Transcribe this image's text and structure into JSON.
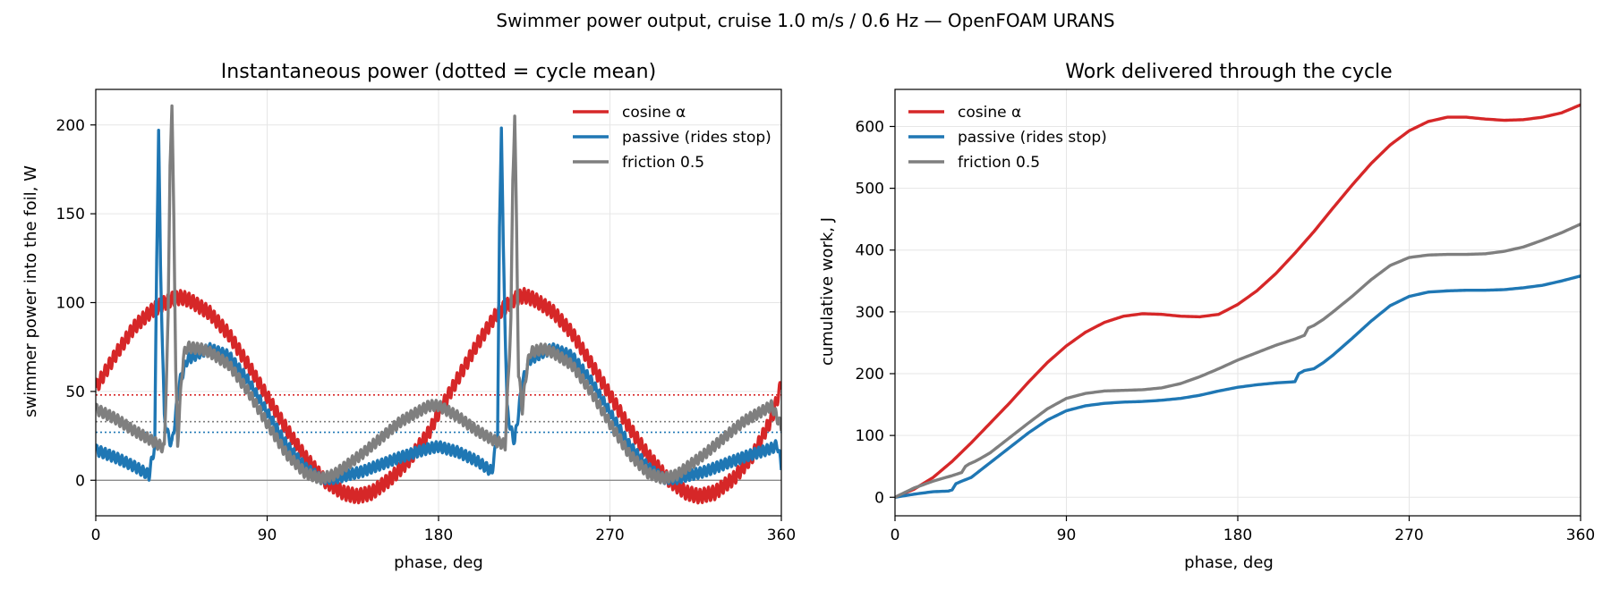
{
  "figure_title": "Swimmer power output, cruise 1.0 m/s / 0.6 Hz — OpenFOAM URANS",
  "colors": {
    "cosine": "#d62728",
    "passive": "#1f77b4",
    "friction": "#7f7f7f",
    "zero_line": "#808080",
    "grid": "#e6e6e6"
  },
  "chart_data": [
    {
      "type": "line",
      "title": "Instantaneous power (dotted = cycle mean)",
      "xlabel": "phase, deg",
      "ylabel": "swimmer power into the foil, W",
      "xlim": [
        0,
        360
      ],
      "ylim": [
        -20,
        220
      ],
      "xticks": [
        0,
        90,
        180,
        270,
        360
      ],
      "yticks": [
        0,
        50,
        100,
        150,
        200
      ],
      "grid": true,
      "legend": "top-right",
      "series": [
        {
          "name": "cosine α",
          "color": "#d62728",
          "mean": 48,
          "x": [
            0,
            10,
            20,
            30,
            40,
            45,
            50,
            60,
            70,
            80,
            90,
            100,
            110,
            120,
            130,
            137,
            145,
            155,
            165,
            175,
            180,
            190,
            200,
            210,
            220,
            225,
            230,
            240,
            250,
            260,
            270,
            280,
            290,
            300,
            310,
            317,
            325,
            335,
            345,
            355,
            360
          ],
          "y": [
            52,
            70,
            86,
            96,
            102,
            103,
            101,
            94,
            82,
            65,
            47,
            29,
            13,
            0,
            -7,
            -9,
            -7,
            1,
            12,
            27,
            38,
            57,
            76,
            93,
            102,
            104,
            102,
            95,
            83,
            66,
            48,
            30,
            14,
            1,
            -7,
            -9,
            -7,
            1,
            14,
            35,
            54
          ],
          "ripple": {
            "amplitude": 4,
            "period_deg": 2.2
          }
        },
        {
          "name": "passive (rides stop)",
          "color": "#1f77b4",
          "mean": 27,
          "x": [
            0,
            10,
            20,
            28,
            31,
            32,
            33,
            34,
            36,
            38,
            40,
            44,
            48,
            55,
            60,
            70,
            80,
            90,
            100,
            110,
            118,
            125,
            140,
            160,
            175,
            180,
            190,
            200,
            208,
            211,
            212,
            213,
            214,
            216,
            218,
            220,
            224,
            228,
            235,
            240,
            250,
            260,
            270,
            280,
            290,
            298,
            305,
            320,
            340,
            355,
            358,
            360
          ],
          "y": [
            17,
            13,
            8,
            3,
            20,
            125,
            197,
            120,
            35,
            25,
            20,
            55,
            68,
            72,
            74,
            70,
            56,
            38,
            20,
            7,
            1,
            1,
            5,
            13,
            18,
            19,
            16,
            11,
            5,
            25,
            140,
            201,
            130,
            40,
            28,
            22,
            55,
            68,
            72,
            74,
            70,
            56,
            38,
            20,
            7,
            1,
            1,
            5,
            13,
            18,
            20,
            8
          ],
          "ripple": {
            "amplitude": 3,
            "period_deg": 2.2
          }
        },
        {
          "name": "friction 0.5",
          "color": "#7f7f7f",
          "mean": 33,
          "x": [
            0,
            10,
            20,
            30,
            36,
            38,
            39,
            40,
            41,
            42,
            43,
            44,
            46,
            48,
            55,
            60,
            70,
            80,
            90,
            100,
            110,
            118,
            125,
            140,
            160,
            175,
            180,
            190,
            200,
            210,
            215,
            218,
            219,
            220,
            221,
            222,
            224,
            226,
            228,
            235,
            240,
            250,
            260,
            270,
            280,
            290,
            298,
            305,
            320,
            340,
            355,
            360
          ],
          "y": [
            40,
            35,
            28,
            22,
            18,
            90,
            180,
            208,
            150,
            60,
            20,
            40,
            70,
            75,
            74,
            72,
            65,
            50,
            32,
            15,
            4,
            1,
            3,
            15,
            33,
            42,
            42,
            36,
            28,
            22,
            20,
            90,
            170,
            205,
            140,
            60,
            40,
            60,
            72,
            74,
            72,
            65,
            50,
            32,
            15,
            4,
            1,
            3,
            15,
            33,
            42,
            30
          ],
          "ripple": {
            "amplitude": 3,
            "period_deg": 2.2
          }
        }
      ]
    },
    {
      "type": "line",
      "title": "Work delivered through the cycle",
      "xlabel": "phase, deg",
      "ylabel": "cumulative work, J",
      "xlim": [
        0,
        360
      ],
      "ylim": [
        -30,
        660
      ],
      "xticks": [
        0,
        90,
        180,
        270,
        360
      ],
      "yticks": [
        0,
        100,
        200,
        300,
        400,
        500,
        600
      ],
      "grid": true,
      "legend": "top-left",
      "series": [
        {
          "name": "cosine α",
          "color": "#d62728",
          "x": [
            0,
            10,
            20,
            30,
            40,
            50,
            60,
            70,
            80,
            90,
            100,
            110,
            120,
            130,
            140,
            150,
            160,
            170,
            180,
            190,
            200,
            210,
            220,
            230,
            240,
            250,
            260,
            270,
            280,
            290,
            300,
            310,
            320,
            330,
            340,
            350,
            360
          ],
          "y": [
            0,
            13,
            32,
            58,
            88,
            120,
            152,
            186,
            218,
            245,
            267,
            283,
            293,
            297,
            296,
            293,
            292,
            296,
            312,
            334,
            362,
            395,
            430,
            468,
            505,
            540,
            570,
            593,
            608,
            615,
            615,
            612,
            610,
            611,
            615,
            622,
            635
          ]
        },
        {
          "name": "passive (rides stop)",
          "color": "#1f77b4",
          "x": [
            0,
            10,
            20,
            28,
            30,
            32,
            35,
            40,
            45,
            50,
            60,
            70,
            80,
            90,
            100,
            110,
            120,
            130,
            140,
            150,
            160,
            170,
            180,
            190,
            200,
            210,
            212,
            215,
            220,
            225,
            230,
            240,
            250,
            260,
            270,
            280,
            290,
            300,
            310,
            320,
            330,
            340,
            350,
            360
          ],
          "y": [
            0,
            5,
            9,
            10,
            12,
            22,
            26,
            32,
            44,
            56,
            80,
            104,
            125,
            140,
            148,
            152,
            154,
            155,
            157,
            160,
            165,
            172,
            178,
            182,
            185,
            187,
            200,
            205,
            208,
            218,
            230,
            257,
            285,
            310,
            325,
            332,
            334,
            335,
            335,
            336,
            339,
            343,
            350,
            358
          ]
        },
        {
          "name": "friction 0.5",
          "color": "#7f7f7f",
          "x": [
            0,
            10,
            20,
            30,
            35,
            37,
            39,
            42,
            45,
            50,
            60,
            70,
            80,
            90,
            100,
            110,
            120,
            130,
            140,
            150,
            160,
            170,
            180,
            190,
            200,
            210,
            215,
            217,
            220,
            225,
            230,
            240,
            250,
            260,
            270,
            280,
            290,
            300,
            310,
            320,
            330,
            340,
            350,
            360
          ],
          "y": [
            0,
            15,
            26,
            35,
            40,
            50,
            54,
            58,
            63,
            72,
            96,
            120,
            143,
            160,
            168,
            172,
            173,
            174,
            177,
            184,
            195,
            208,
            222,
            234,
            246,
            256,
            262,
            274,
            278,
            288,
            300,
            325,
            352,
            375,
            388,
            392,
            393,
            393,
            394,
            398,
            405,
            416,
            428,
            442
          ]
        }
      ]
    }
  ]
}
